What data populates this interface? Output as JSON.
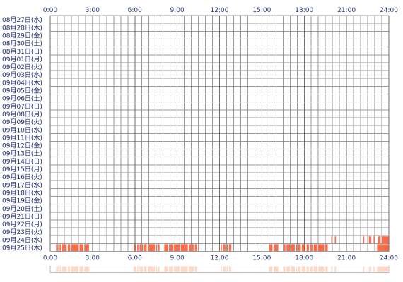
{
  "chart_data": {
    "type": "heatmap",
    "x_unit": "time of day",
    "xlim": [
      "0:00",
      "24:00"
    ],
    "x_ticks": [
      "0:00",
      "3:00",
      "6:00",
      "9:00",
      "12:00",
      "15:00",
      "18:00",
      "21:00",
      "24:00"
    ],
    "rows": [
      "08月27日(水)",
      "08月28日(木)",
      "08月29日(金)",
      "08月30日(土)",
      "08月31日(日)",
      "09月01日(月)",
      "09月02日(火)",
      "09月03日(水)",
      "09月04日(木)",
      "09月05日(金)",
      "09月06日(土)",
      "09月07日(日)",
      "09月08日(月)",
      "09月09日(火)",
      "09月10日(水)",
      "09月11日(木)",
      "09月12日(金)",
      "09月13日(土)",
      "09月14日(日)",
      "09月15日(月)",
      "09月16日(火)",
      "09月17日(水)",
      "09月18日(木)",
      "09月19日(金)",
      "09月20日(土)",
      "09月21日(日)",
      "09月22日(月)",
      "09月23日(火)",
      "09月24日(水)",
      "09月25日(木)"
    ],
    "activity": [
      {
        "row": "09月24日(水)",
        "intervals": [
          [
            "19:55",
            "20:00"
          ],
          [
            "20:10",
            "20:15"
          ],
          [
            "22:10",
            "22:15"
          ],
          [
            "22:35",
            "22:45"
          ],
          [
            "22:55",
            "23:00"
          ],
          [
            "23:15",
            "23:25"
          ],
          [
            "23:30",
            "24:00"
          ]
        ]
      },
      {
        "row": "09月25日(木)",
        "intervals": [
          [
            "0:25",
            "0:35"
          ],
          [
            "0:40",
            "0:45"
          ],
          [
            "0:50",
            "1:10"
          ],
          [
            "1:15",
            "1:25"
          ],
          [
            "1:30",
            "2:00"
          ],
          [
            "2:05",
            "2:20"
          ],
          [
            "2:25",
            "2:45"
          ],
          [
            "5:55",
            "6:05"
          ],
          [
            "6:10",
            "6:15"
          ],
          [
            "6:20",
            "6:35"
          ],
          [
            "6:40",
            "6:50"
          ],
          [
            "6:55",
            "7:25"
          ],
          [
            "7:30",
            "7:35"
          ],
          [
            "7:40",
            "7:45"
          ],
          [
            "8:05",
            "8:20"
          ],
          [
            "8:25",
            "8:40"
          ],
          [
            "8:45",
            "9:10"
          ],
          [
            "9:15",
            "9:45"
          ],
          [
            "9:50",
            "10:10"
          ],
          [
            "10:15",
            "10:25"
          ],
          [
            "12:05",
            "12:10"
          ],
          [
            "12:15",
            "12:25"
          ],
          [
            "12:30",
            "12:35"
          ],
          [
            "12:40",
            "12:50"
          ],
          [
            "15:30",
            "15:45"
          ],
          [
            "15:50",
            "16:10"
          ],
          [
            "16:30",
            "16:40"
          ],
          [
            "16:45",
            "17:00"
          ],
          [
            "17:05",
            "17:20"
          ],
          [
            "17:25",
            "17:30"
          ],
          [
            "17:35",
            "17:45"
          ],
          [
            "17:50",
            "18:05"
          ],
          [
            "18:10",
            "18:20"
          ],
          [
            "18:25",
            "18:35"
          ],
          [
            "18:40",
            "18:55"
          ],
          [
            "19:00",
            "19:25"
          ],
          [
            "19:30",
            "19:40"
          ],
          [
            "23:10",
            "24:00"
          ]
        ]
      }
    ],
    "colors": {
      "grid": "#999999",
      "activity": "#ff6b47",
      "activity_faint": "#ffcfb8",
      "summary_strip": "#ffd6c4",
      "tick_text": "#2a3c7a",
      "row_text": "#1a2b70"
    }
  }
}
